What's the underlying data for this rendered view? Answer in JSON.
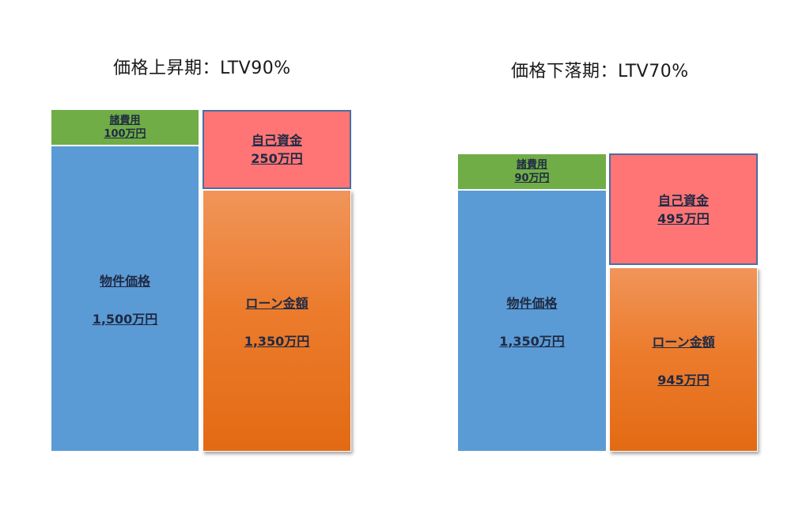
{
  "panels": [
    {
      "title": "価格上昇期：LTV90%",
      "fees": {
        "label": "諸費用",
        "value": "100万円"
      },
      "price": {
        "label": "物件価格",
        "value": "1,500万円"
      },
      "equity": {
        "label": "自己資金",
        "value": "250万円"
      },
      "loan": {
        "label": "ローン金額",
        "value": "1,350万円"
      }
    },
    {
      "title": "価格下落期：LTV70%",
      "fees": {
        "label": "諸費用",
        "value": "90万円"
      },
      "price": {
        "label": "物件価格",
        "value": "1,350万円"
      },
      "equity": {
        "label": "自己資金",
        "value": "495万円"
      },
      "loan": {
        "label": "ローン金額",
        "value": "945万円"
      }
    }
  ],
  "colors": {
    "fees": "#70ad47",
    "price": "#5b9bd5",
    "equity": "#ff7575",
    "loan": "#ec7c2d"
  }
}
